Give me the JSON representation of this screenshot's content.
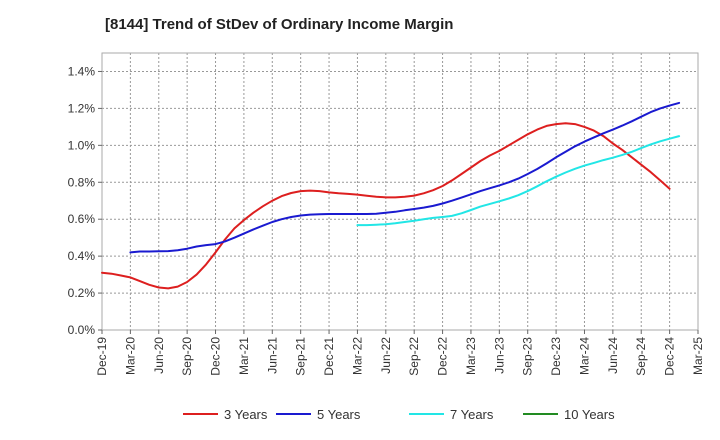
{
  "chart_data": {
    "type": "line",
    "title": "[8144]  Trend of StDev of Ordinary Income Margin",
    "xlabel": "",
    "ylabel": "",
    "x_ticks": [
      "Dec-19",
      "Mar-20",
      "Jun-20",
      "Sep-20",
      "Dec-20",
      "Mar-21",
      "Jun-21",
      "Sep-21",
      "Dec-21",
      "Mar-22",
      "Jun-22",
      "Sep-22",
      "Dec-22",
      "Mar-23",
      "Jun-23",
      "Sep-23",
      "Dec-23",
      "Mar-24",
      "Jun-24",
      "Sep-24",
      "Dec-24",
      "Mar-25"
    ],
    "y_ticks": [
      "0.0%",
      "0.2%",
      "0.4%",
      "0.6%",
      "0.8%",
      "1.0%",
      "1.2%",
      "1.4%"
    ],
    "ylim": [
      0,
      1.5
    ],
    "grid": true,
    "legend_position": "bottom",
    "series": [
      {
        "name": "3 Years",
        "color": "#dd1f1f",
        "points": [
          [
            "Dec-19",
            0.31
          ],
          [
            "Jan-20",
            0.305
          ],
          [
            "Feb-20",
            0.295
          ],
          [
            "Mar-20",
            0.285
          ],
          [
            "Apr-20",
            0.265
          ],
          [
            "May-20",
            0.245
          ],
          [
            "Jun-20",
            0.23
          ],
          [
            "Jul-20",
            0.225
          ],
          [
            "Aug-20",
            0.235
          ],
          [
            "Sep-20",
            0.26
          ],
          [
            "Oct-20",
            0.3
          ],
          [
            "Nov-20",
            0.355
          ],
          [
            "Dec-20",
            0.42
          ],
          [
            "Jan-21",
            0.49
          ],
          [
            "Feb-21",
            0.55
          ],
          [
            "Mar-21",
            0.595
          ],
          [
            "Apr-21",
            0.635
          ],
          [
            "May-21",
            0.67
          ],
          [
            "Jun-21",
            0.7
          ],
          [
            "Jul-21",
            0.725
          ],
          [
            "Aug-21",
            0.742
          ],
          [
            "Sep-21",
            0.752
          ],
          [
            "Oct-21",
            0.755
          ],
          [
            "Nov-21",
            0.752
          ],
          [
            "Dec-21",
            0.745
          ],
          [
            "Jan-22",
            0.74
          ],
          [
            "Feb-22",
            0.737
          ],
          [
            "Mar-22",
            0.733
          ],
          [
            "Apr-22",
            0.727
          ],
          [
            "May-22",
            0.722
          ],
          [
            "Jun-22",
            0.718
          ],
          [
            "Jul-22",
            0.718
          ],
          [
            "Aug-22",
            0.722
          ],
          [
            "Sep-22",
            0.728
          ],
          [
            "Oct-22",
            0.74
          ],
          [
            "Nov-22",
            0.757
          ],
          [
            "Dec-22",
            0.78
          ],
          [
            "Jan-23",
            0.81
          ],
          [
            "Feb-23",
            0.845
          ],
          [
            "Mar-23",
            0.88
          ],
          [
            "Apr-23",
            0.915
          ],
          [
            "May-23",
            0.945
          ],
          [
            "Jun-23",
            0.97
          ],
          [
            "Jul-23",
            1.0
          ],
          [
            "Aug-23",
            1.03
          ],
          [
            "Sep-23",
            1.06
          ],
          [
            "Oct-23",
            1.085
          ],
          [
            "Nov-23",
            1.105
          ],
          [
            "Dec-23",
            1.115
          ],
          [
            "Jan-24",
            1.12
          ],
          [
            "Feb-24",
            1.115
          ],
          [
            "Mar-24",
            1.1
          ],
          [
            "Apr-24",
            1.08
          ],
          [
            "May-24",
            1.05
          ],
          [
            "Jun-24",
            1.01
          ],
          [
            "Jul-24",
            0.975
          ],
          [
            "Aug-24",
            0.935
          ],
          [
            "Sep-24",
            0.895
          ],
          [
            "Oct-24",
            0.855
          ],
          [
            "Nov-24",
            0.81
          ],
          [
            "Dec-24",
            0.765
          ]
        ]
      },
      {
        "name": "5 Years",
        "color": "#1a1ad0",
        "points": [
          [
            "Mar-20",
            0.42
          ],
          [
            "Apr-20",
            0.425
          ],
          [
            "May-20",
            0.425
          ],
          [
            "Jun-20",
            0.426
          ],
          [
            "Jul-20",
            0.427
          ],
          [
            "Aug-20",
            0.432
          ],
          [
            "Sep-20",
            0.44
          ],
          [
            "Oct-20",
            0.452
          ],
          [
            "Nov-20",
            0.46
          ],
          [
            "Dec-20",
            0.465
          ],
          [
            "Jan-21",
            0.48
          ],
          [
            "Feb-21",
            0.5
          ],
          [
            "Mar-21",
            0.522
          ],
          [
            "Apr-21",
            0.545
          ],
          [
            "May-21",
            0.565
          ],
          [
            "Jun-21",
            0.585
          ],
          [
            "Jul-21",
            0.6
          ],
          [
            "Aug-21",
            0.612
          ],
          [
            "Sep-21",
            0.62
          ],
          [
            "Oct-21",
            0.625
          ],
          [
            "Nov-21",
            0.627
          ],
          [
            "Dec-21",
            0.628
          ],
          [
            "Jan-22",
            0.628
          ],
          [
            "Feb-22",
            0.628
          ],
          [
            "Mar-22",
            0.628
          ],
          [
            "Apr-22",
            0.628
          ],
          [
            "May-22",
            0.63
          ],
          [
            "Jun-22",
            0.635
          ],
          [
            "Jul-22",
            0.64
          ],
          [
            "Aug-22",
            0.648
          ],
          [
            "Sep-22",
            0.655
          ],
          [
            "Oct-22",
            0.663
          ],
          [
            "Nov-22",
            0.672
          ],
          [
            "Dec-22",
            0.685
          ],
          [
            "Jan-23",
            0.7
          ],
          [
            "Feb-23",
            0.717
          ],
          [
            "Mar-23",
            0.735
          ],
          [
            "Apr-23",
            0.752
          ],
          [
            "May-23",
            0.768
          ],
          [
            "Jun-23",
            0.783
          ],
          [
            "Jul-23",
            0.8
          ],
          [
            "Aug-23",
            0.82
          ],
          [
            "Sep-23",
            0.845
          ],
          [
            "Oct-23",
            0.872
          ],
          [
            "Nov-23",
            0.902
          ],
          [
            "Dec-23",
            0.935
          ],
          [
            "Jan-24",
            0.965
          ],
          [
            "Feb-24",
            0.995
          ],
          [
            "Mar-24",
            1.02
          ],
          [
            "Apr-24",
            1.043
          ],
          [
            "May-24",
            1.065
          ],
          [
            "Jun-24",
            1.085
          ],
          [
            "Jul-24",
            1.107
          ],
          [
            "Aug-24",
            1.13
          ],
          [
            "Sep-24",
            1.155
          ],
          [
            "Oct-24",
            1.18
          ],
          [
            "Nov-24",
            1.2
          ],
          [
            "Dec-24",
            1.215
          ],
          [
            "Jan-25",
            1.23
          ]
        ]
      },
      {
        "name": "7 Years",
        "color": "#22e6e6",
        "points": [
          [
            "Mar-22",
            0.568
          ],
          [
            "Apr-22",
            0.568
          ],
          [
            "May-22",
            0.57
          ],
          [
            "Jun-22",
            0.573
          ],
          [
            "Jul-22",
            0.578
          ],
          [
            "Aug-22",
            0.585
          ],
          [
            "Sep-22",
            0.592
          ],
          [
            "Oct-22",
            0.6
          ],
          [
            "Nov-22",
            0.607
          ],
          [
            "Dec-22",
            0.612
          ],
          [
            "Jan-23",
            0.618
          ],
          [
            "Feb-23",
            0.632
          ],
          [
            "Mar-23",
            0.65
          ],
          [
            "Apr-23",
            0.668
          ],
          [
            "May-23",
            0.683
          ],
          [
            "Jun-23",
            0.697
          ],
          [
            "Jul-23",
            0.712
          ],
          [
            "Aug-23",
            0.73
          ],
          [
            "Sep-23",
            0.752
          ],
          [
            "Oct-23",
            0.778
          ],
          [
            "Nov-23",
            0.805
          ],
          [
            "Dec-23",
            0.83
          ],
          [
            "Jan-24",
            0.853
          ],
          [
            "Feb-24",
            0.873
          ],
          [
            "Mar-24",
            0.89
          ],
          [
            "Apr-24",
            0.905
          ],
          [
            "May-24",
            0.92
          ],
          [
            "Jun-24",
            0.933
          ],
          [
            "Jul-24",
            0.948
          ],
          [
            "Aug-24",
            0.965
          ],
          [
            "Sep-24",
            0.985
          ],
          [
            "Oct-24",
            1.005
          ],
          [
            "Nov-24",
            1.022
          ],
          [
            "Dec-24",
            1.036
          ],
          [
            "Jan-25",
            1.05
          ]
        ]
      },
      {
        "name": "10 Years",
        "color": "#228b22",
        "points": []
      }
    ]
  }
}
